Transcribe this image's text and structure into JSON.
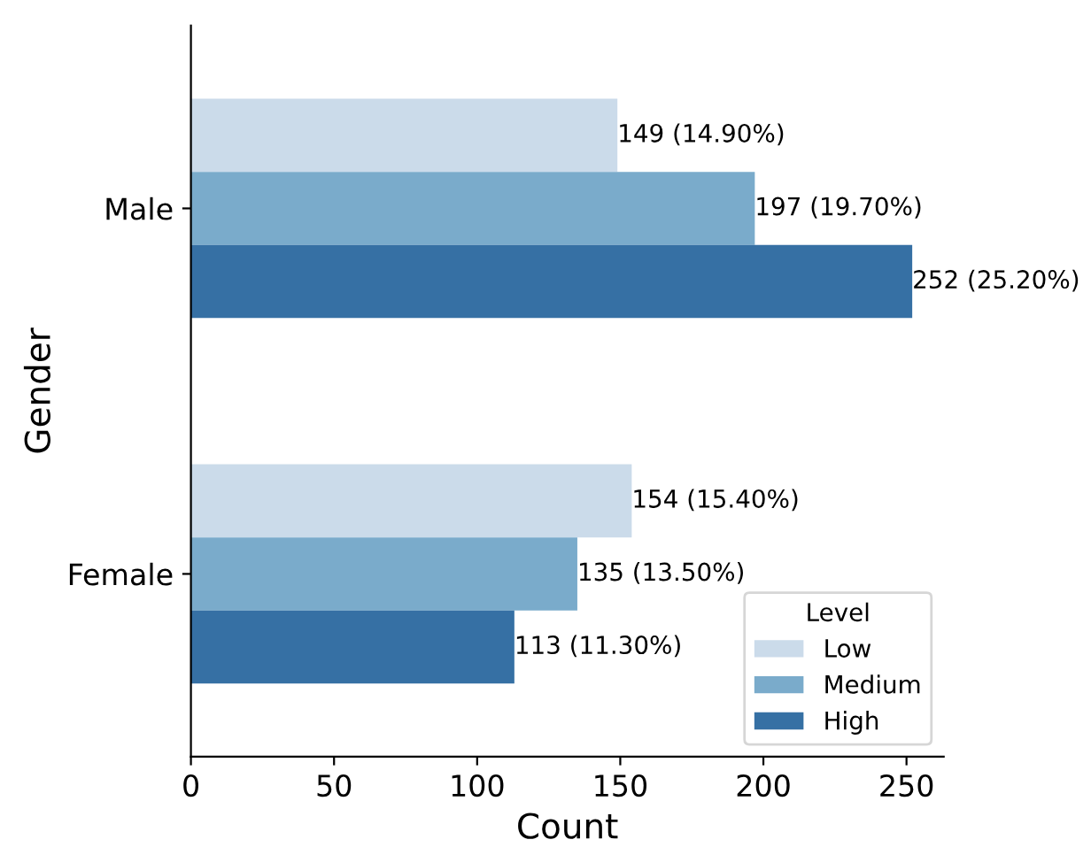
{
  "chart_data": {
    "type": "bar",
    "orientation": "horizontal",
    "xlabel": "Count",
    "ylabel": "Gender",
    "legend_title": "Level",
    "categories": [
      "Male",
      "Female"
    ],
    "series": [
      {
        "name": "Low",
        "color": "#cbdbea",
        "values": [
          149,
          154
        ],
        "value_labels": [
          "149 (14.90%)",
          "154 (15.40%)"
        ]
      },
      {
        "name": "Medium",
        "color": "#7aabcb",
        "values": [
          197,
          135
        ],
        "value_labels": [
          "197 (19.70%)",
          "135 (13.50%)"
        ]
      },
      {
        "name": "High",
        "color": "#3670a4",
        "values": [
          252,
          113
        ],
        "value_labels": [
          "252 (25.20%)",
          "113 (11.30%)"
        ]
      }
    ],
    "xlim": [
      0,
      263
    ],
    "xticks": [
      0,
      50,
      100,
      150,
      200,
      250
    ],
    "grid": false,
    "legend": "bottom right"
  }
}
